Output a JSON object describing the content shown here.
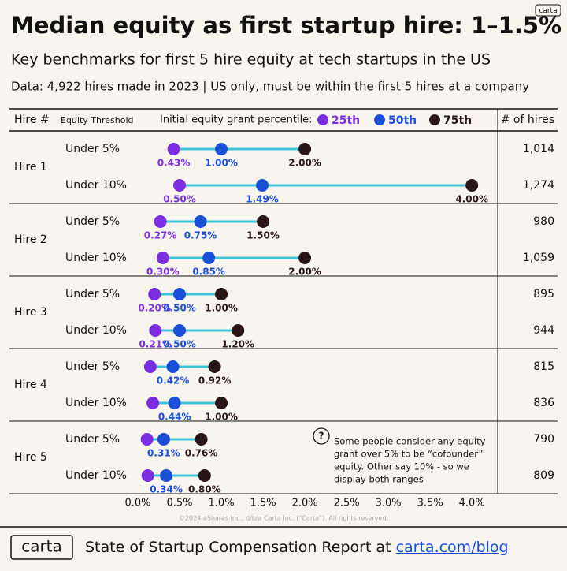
{
  "chart_data": {
    "type": "dumbbell",
    "title": "Median equity as first startup hire: 1–1.5%",
    "subtitle": "Key benchmarks for first 5 hire equity at tech startups in the US",
    "note": "Data: 4,922 hires made in 2023 | US only, must be within the first 5 hires at a company",
    "header_hire": "Hire #",
    "header_threshold": "Equity Threshold",
    "header_percentile": "Initial equity grant percentile:",
    "header_count": "# of hires",
    "groups": [
      "Hire 1",
      "Hire 2",
      "Hire 3",
      "Hire 4",
      "Hire 5"
    ],
    "categories": [
      "Under 5%",
      "Under 10%",
      "Under 5%",
      "Under 10%",
      "Under 5%",
      "Under 10%",
      "Under 5%",
      "Under 10%",
      "Under 5%",
      "Under 10%"
    ],
    "hire_counts": [
      "1,014",
      "1,274",
      "980",
      "1,059",
      "895",
      "944",
      "815",
      "836",
      "790",
      "809"
    ],
    "series": [
      {
        "name": "25th",
        "color": "#7a2ee0",
        "values": [
          0.43,
          0.5,
          0.27,
          0.3,
          0.2,
          0.21,
          0.15,
          0.18,
          0.11,
          0.12
        ],
        "value_labels": [
          "0.43%",
          "0.50%",
          "0.27%",
          "0.30%",
          "0.20%",
          "0.21%",
          null,
          null,
          null,
          null
        ]
      },
      {
        "name": "50th",
        "color": "#1a4fd8",
        "values": [
          1.0,
          1.49,
          0.75,
          0.85,
          0.5,
          0.5,
          0.42,
          0.44,
          0.31,
          0.34
        ],
        "value_labels": [
          "1.00%",
          "1.49%",
          "0.75%",
          "0.85%",
          "0.50%",
          "0.50%",
          "0.42%",
          "0.44%",
          "0.31%",
          "0.34%"
        ]
      },
      {
        "name": "75th",
        "color": "#2a1616",
        "values": [
          2.0,
          4.0,
          1.5,
          2.0,
          1.0,
          1.2,
          0.92,
          1.0,
          0.76,
          0.8
        ],
        "value_labels": [
          "2.00%",
          "4.00%",
          "1.50%",
          "2.00%",
          "1.00%",
          "1.20%",
          "0.92%",
          "1.00%",
          "0.76%",
          "0.80%"
        ]
      }
    ],
    "range_color": "#3fc4d9",
    "xlim": [
      0,
      4.3
    ],
    "xticks": [
      {
        "value": 0,
        "label": "0.0%"
      },
      {
        "value": 0.5,
        "label": "0.5%"
      },
      {
        "value": 1,
        "label": "1.0%"
      },
      {
        "value": 1.5,
        "label": "1.5%"
      },
      {
        "value": 2,
        "label": "2.0%"
      },
      {
        "value": 2.5,
        "label": "2.5%"
      },
      {
        "value": 3,
        "label": "3.0%"
      },
      {
        "value": 3.5,
        "label": "3.5%"
      },
      {
        "value": 4,
        "label": "4.0%"
      }
    ],
    "grid": false,
    "annotation_icon": "?",
    "annotation": [
      "Some people consider any equity",
      "grant over 5% to be “cofounder”",
      "equity. Other say 10% - so we",
      "display both ranges"
    ],
    "copyright": "©2024 eShares Inc., d/b/a Carta Inc. (“Carta”). All rights reserved.",
    "logo": "carta",
    "footer_text": "State of Startup Compensation Report at ",
    "footer_link": "carta.com/blog"
  }
}
